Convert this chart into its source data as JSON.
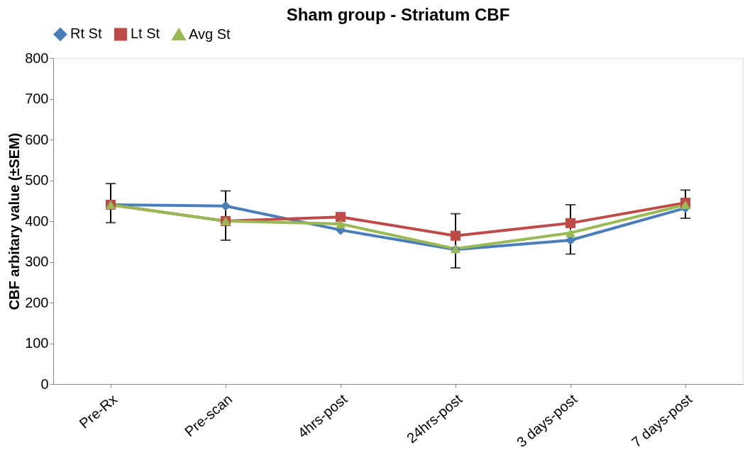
{
  "chart_data": {
    "type": "line",
    "title": "Sham group - Striatum CBF",
    "ylabel": "CBF arbitary value (±SEM)",
    "categories": [
      "Pre-Rx",
      "Pre-scan",
      "4hrs-post",
      "24hrs-post",
      "3 days-post",
      "7 days-post"
    ],
    "series": [
      {
        "name": "Rt St",
        "color": "#4a7ebb",
        "marker": "diamond",
        "values": [
          440,
          437,
          378,
          330,
          353,
          432
        ]
      },
      {
        "name": "Lt St",
        "color": "#be4b48",
        "marker": "square",
        "values": [
          440,
          400,
          410,
          364,
          395,
          445
        ]
      },
      {
        "name": "Avg St",
        "color": "#98b954",
        "marker": "triangle",
        "values": [
          440,
          400,
          393,
          332,
          371,
          440
        ],
        "errors": [
          [
            396,
            492
          ],
          [
            353,
            474
          ],
          null,
          [
            285,
            418
          ],
          [
            319,
            440
          ],
          [
            407,
            476
          ]
        ]
      }
    ],
    "ylim": [
      0,
      800
    ],
    "yticks": [
      0,
      100,
      200,
      300,
      400,
      500,
      600,
      700,
      800
    ],
    "grid": false,
    "legend": "top",
    "line_style": "solid"
  }
}
